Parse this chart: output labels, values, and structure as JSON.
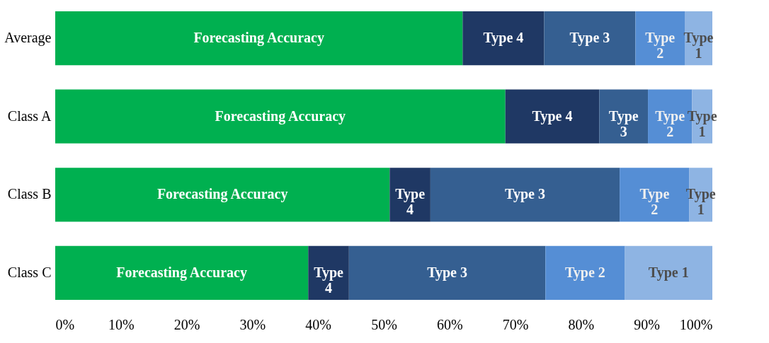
{
  "chart_data": {
    "type": "bar",
    "orientation": "horizontal",
    "stacked": true,
    "legend": false,
    "grid": false,
    "categories": [
      "Average",
      "Class A",
      "Class B",
      "Class C"
    ],
    "series": [
      {
        "name": "Forecasting Accuracy",
        "color": "#00b050",
        "values": [
          62.0,
          68.5,
          50.9,
          38.5
        ]
      },
      {
        "name": "Type 4",
        "color": "#1f3864",
        "values": [
          12.4,
          14.3,
          6.2,
          6.2
        ]
      },
      {
        "name": "Type 3",
        "color": "#355f91",
        "values": [
          13.9,
          7.4,
          28.8,
          29.9
        ]
      },
      {
        "name": "Type 2",
        "color": "#558ed5",
        "values": [
          7.5,
          6.7,
          10.6,
          12.1
        ]
      },
      {
        "name": "Type 1",
        "color": "#8eb4e3",
        "values": [
          4.2,
          3.1,
          3.5,
          13.3
        ]
      }
    ],
    "xlim": [
      0,
      100
    ],
    "xticks": [
      {
        "value": 0,
        "label": "0%"
      },
      {
        "value": 10,
        "label": "10%"
      },
      {
        "value": 20,
        "label": "20%"
      },
      {
        "value": 30,
        "label": "30%"
      },
      {
        "value": 40,
        "label": "40%"
      },
      {
        "value": 50,
        "label": "50%"
      },
      {
        "value": 60,
        "label": "60%"
      },
      {
        "value": 70,
        "label": "70%"
      },
      {
        "value": 80,
        "label": "80%"
      },
      {
        "value": 90,
        "label": "90%"
      },
      {
        "value": 100,
        "label": "100%"
      }
    ]
  }
}
